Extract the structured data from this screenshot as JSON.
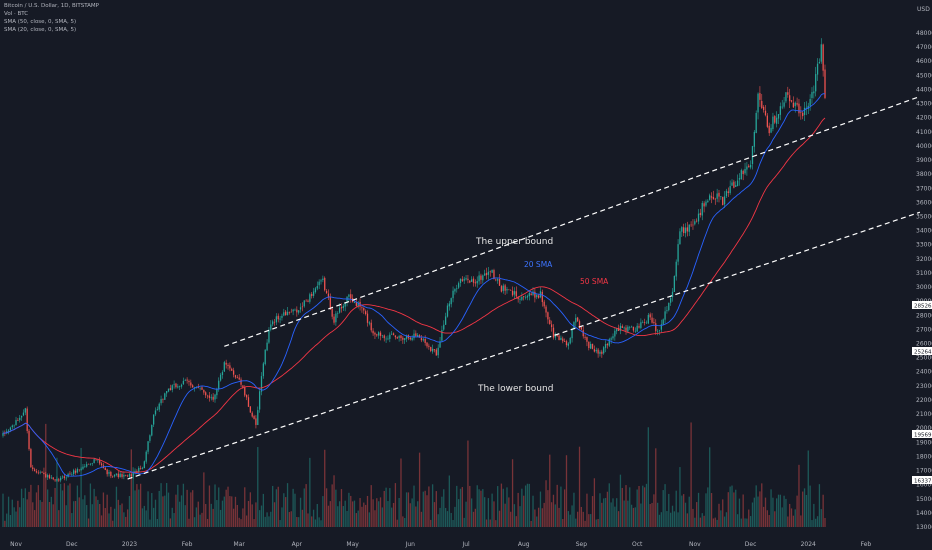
{
  "header": {
    "symbol": "Bitcoin / U.S. Dollar, 1D, BITSTAMP",
    "vol": "Vol · BTC",
    "sma50": "SMA (50, close, 0, SMA, 5)",
    "sma20": "SMA (20, close, 0, SMA, 5)"
  },
  "currency": "USD",
  "annotations": {
    "upper_bound": "The upper bound",
    "lower_bound": "The lower bound",
    "sma20": "20 SMA",
    "sma50": "50 SMA"
  },
  "badges": {
    "price_a": "28526",
    "price_b": "25264",
    "price_c": "19569",
    "price_d": "16337"
  },
  "colors": {
    "background": "#161a25",
    "up": "#26a69a",
    "down": "#ef5350",
    "sma20": "#2962ff",
    "sma50": "#f23645",
    "channel": "#ffffff",
    "sma20_label": "#3d74ff",
    "sma50_label": "#f23645"
  },
  "chart_data": {
    "type": "candlestick",
    "yticks": [
      13000,
      14000,
      15000,
      16000,
      17000,
      18000,
      19000,
      20000,
      21000,
      22000,
      23000,
      24000,
      25000,
      26000,
      27000,
      28000,
      29000,
      30000,
      31000,
      32000,
      33000,
      34000,
      35000,
      36000,
      37000,
      38000,
      39000,
      40000,
      41000,
      42000,
      43000,
      44000,
      45000,
      46000,
      47000,
      48000
    ],
    "ylim": [
      12500,
      49000
    ],
    "xlabels": [
      "Nov",
      "Dec",
      "2023",
      "Feb",
      "Mar",
      "Apr",
      "May",
      "Jun",
      "Jul",
      "Aug",
      "Sep",
      "Oct",
      "Nov",
      "Dec",
      "2024",
      "Feb"
    ],
    "price_path": [
      {
        "date": "2022-10-25",
        "close": 19500
      },
      {
        "date": "2022-11-01",
        "close": 20400
      },
      {
        "date": "2022-11-06",
        "close": 21300
      },
      {
        "date": "2022-11-09",
        "close": 17200
      },
      {
        "date": "2022-11-15",
        "close": 16800
      },
      {
        "date": "2022-11-22",
        "close": 16200
      },
      {
        "date": "2022-12-05",
        "close": 17100
      },
      {
        "date": "2022-12-14",
        "close": 17800
      },
      {
        "date": "2022-12-20",
        "close": 16800
      },
      {
        "date": "2022-12-31",
        "close": 16550
      },
      {
        "date": "2023-01-08",
        "close": 17200
      },
      {
        "date": "2023-01-14",
        "close": 20800
      },
      {
        "date": "2023-01-21",
        "close": 22700
      },
      {
        "date": "2023-02-01",
        "close": 23300
      },
      {
        "date": "2023-02-15",
        "close": 22100
      },
      {
        "date": "2023-02-21",
        "close": 24500
      },
      {
        "date": "2023-03-01",
        "close": 23500
      },
      {
        "date": "2023-03-10",
        "close": 20100
      },
      {
        "date": "2023-03-14",
        "close": 24800
      },
      {
        "date": "2023-03-18",
        "close": 27500
      },
      {
        "date": "2023-03-26",
        "close": 28100
      },
      {
        "date": "2023-04-02",
        "close": 28300
      },
      {
        "date": "2023-04-11",
        "close": 29900
      },
      {
        "date": "2023-04-15",
        "close": 30400
      },
      {
        "date": "2023-04-21",
        "close": 27700
      },
      {
        "date": "2023-04-28",
        "close": 29300
      },
      {
        "date": "2023-05-06",
        "close": 28500
      },
      {
        "date": "2023-05-12",
        "close": 26800
      },
      {
        "date": "2023-05-24",
        "close": 26400
      },
      {
        "date": "2023-06-05",
        "close": 26600
      },
      {
        "date": "2023-06-15",
        "close": 25300
      },
      {
        "date": "2023-06-21",
        "close": 28500
      },
      {
        "date": "2023-06-27",
        "close": 30500
      },
      {
        "date": "2023-07-06",
        "close": 30400
      },
      {
        "date": "2023-07-14",
        "close": 31200
      },
      {
        "date": "2023-07-20",
        "close": 29900
      },
      {
        "date": "2023-07-31",
        "close": 29300
      },
      {
        "date": "2023-08-10",
        "close": 29500
      },
      {
        "date": "2023-08-17",
        "close": 26600
      },
      {
        "date": "2023-08-25",
        "close": 26000
      },
      {
        "date": "2023-08-29",
        "close": 27700
      },
      {
        "date": "2023-09-05",
        "close": 25900
      },
      {
        "date": "2023-09-11",
        "close": 25200
      },
      {
        "date": "2023-09-20",
        "close": 27100
      },
      {
        "date": "2023-09-30",
        "close": 27000
      },
      {
        "date": "2023-10-08",
        "close": 27900
      },
      {
        "date": "2023-10-12",
        "close": 26800
      },
      {
        "date": "2023-10-20",
        "close": 29700
      },
      {
        "date": "2023-10-24",
        "close": 33900
      },
      {
        "date": "2023-11-01",
        "close": 34600
      },
      {
        "date": "2023-11-09",
        "close": 36700
      },
      {
        "date": "2023-11-16",
        "close": 36100
      },
      {
        "date": "2023-11-24",
        "close": 37700
      },
      {
        "date": "2023-12-01",
        "close": 38700
      },
      {
        "date": "2023-12-05",
        "close": 44000
      },
      {
        "date": "2023-12-11",
        "close": 41200
      },
      {
        "date": "2023-12-20",
        "close": 43600
      },
      {
        "date": "2023-12-29",
        "close": 42100
      },
      {
        "date": "2024-01-04",
        "close": 44200
      },
      {
        "date": "2024-01-08",
        "close": 46900
      },
      {
        "date": "2024-01-10",
        "close": 43400
      }
    ],
    "channel": {
      "upper": [
        {
          "date": "2023-02-21",
          "price": 25800
        },
        {
          "date": "2024-03-01",
          "price": 43500
        }
      ],
      "lower": [
        {
          "date": "2022-12-31",
          "price": 16400
        },
        {
          "date": "2024-03-01",
          "price": 35300
        }
      ]
    },
    "series": [
      {
        "name": "20 SMA",
        "period": 20
      },
      {
        "name": "50 SMA",
        "period": 50
      }
    ]
  }
}
